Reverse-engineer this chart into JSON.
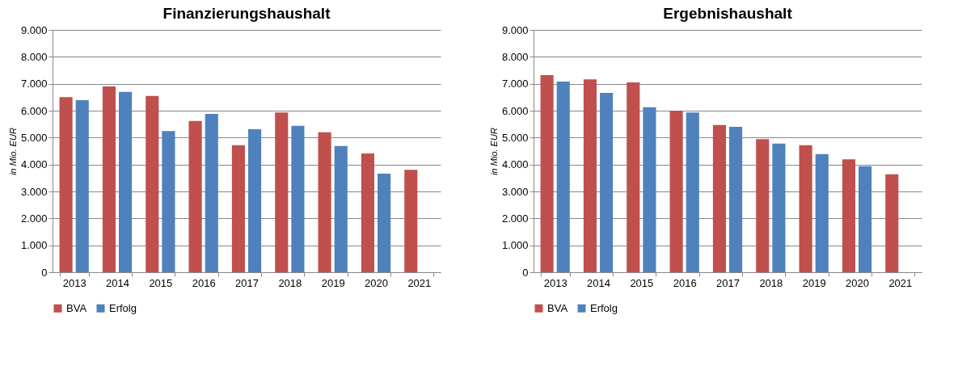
{
  "chart_data": [
    {
      "type": "bar",
      "title": "Finanzierungshaushalt",
      "ylabel": "in Mio. EUR",
      "categories": [
        "2013",
        "2014",
        "2015",
        "2016",
        "2017",
        "2018",
        "2019",
        "2020",
        "2021"
      ],
      "series": [
        {
          "name": "BVA",
          "color": "#c0504d",
          "values": [
            6500,
            6900,
            6550,
            5620,
            4720,
            5930,
            5200,
            4410,
            3800
          ]
        },
        {
          "name": "Erfolg",
          "color": "#4f81bd",
          "values": [
            6390,
            6700,
            5240,
            5880,
            5310,
            5440,
            4690,
            3660,
            null
          ]
        }
      ],
      "ylim": [
        0,
        9000
      ],
      "yticks": [
        0,
        {
          "value": 1000,
          "label": "1.000"
        },
        {
          "value": 2000,
          "label": "2.000"
        },
        {
          "value": 3000,
          "label": "3.000"
        },
        {
          "value": 4000,
          "label": "4.000"
        },
        {
          "value": 5000,
          "label": "5.000"
        },
        {
          "value": 6000,
          "label": "6.000"
        },
        {
          "value": 7000,
          "label": "7.000"
        },
        {
          "value": 8000,
          "label": "8.000"
        },
        {
          "value": 9000,
          "label": "9.000"
        }
      ],
      "grid": "y",
      "legend": "bottom"
    },
    {
      "type": "bar",
      "title": "Ergebnishaushalt",
      "ylabel": "in Mio. EUR",
      "categories": [
        "2013",
        "2014",
        "2015",
        "2016",
        "2017",
        "2018",
        "2019",
        "2020",
        "2021"
      ],
      "series": [
        {
          "name": "BVA",
          "color": "#c0504d",
          "values": [
            7320,
            7160,
            7050,
            6000,
            5470,
            4940,
            4720,
            4190,
            3640
          ]
        },
        {
          "name": "Erfolg",
          "color": "#4f81bd",
          "values": [
            7080,
            6660,
            6130,
            5930,
            5400,
            4780,
            4390,
            3940,
            null
          ]
        }
      ],
      "ylim": [
        0,
        9000
      ],
      "yticks": [
        0,
        {
          "value": 1000,
          "label": "1.000"
        },
        {
          "value": 2000,
          "label": "2.000"
        },
        {
          "value": 3000,
          "label": "3.000"
        },
        {
          "value": 4000,
          "label": "4.000"
        },
        {
          "value": 5000,
          "label": "5.000"
        },
        {
          "value": 6000,
          "label": "6.000"
        },
        {
          "value": 7000,
          "label": "7.000"
        },
        {
          "value": 8000,
          "label": "8.000"
        },
        {
          "value": 9000,
          "label": "9.000"
        }
      ],
      "grid": "y",
      "legend": "bottom"
    }
  ]
}
